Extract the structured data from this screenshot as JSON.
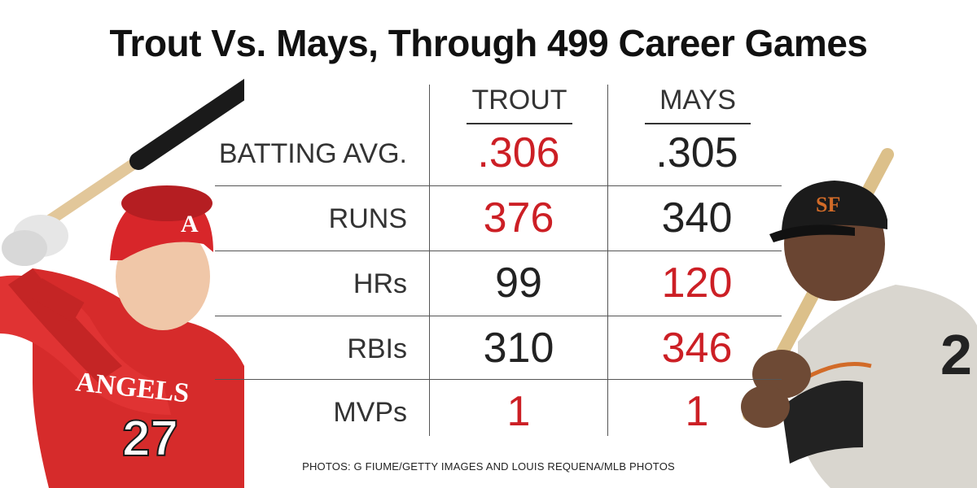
{
  "title": "Trout Vs. Mays, Through 499 Career Games",
  "columns": [
    "TROUT",
    "MAYS"
  ],
  "highlight_color": "#cc1f25",
  "default_color": "#222222",
  "rows": [
    {
      "label": "BATTING AVG.",
      "trout": ".306",
      "mays": ".305",
      "leader": "trout"
    },
    {
      "label": "RUNS",
      "trout": "376",
      "mays": "340",
      "leader": "trout"
    },
    {
      "label": "HRs",
      "trout": "99",
      "mays": "120",
      "leader": "mays"
    },
    {
      "label": "RBIs",
      "trout": "310",
      "mays": "346",
      "leader": "mays"
    },
    {
      "label": "MVPs",
      "trout": "1",
      "mays": "1",
      "leader": "both"
    }
  ],
  "credit": "PHOTOS: G FIUME/GETTY IMAGES AND LOUIS REQUENA/MLB PHOTOS",
  "trout_jersey_number": "27",
  "trout_jersey_text": "ANGELS"
}
